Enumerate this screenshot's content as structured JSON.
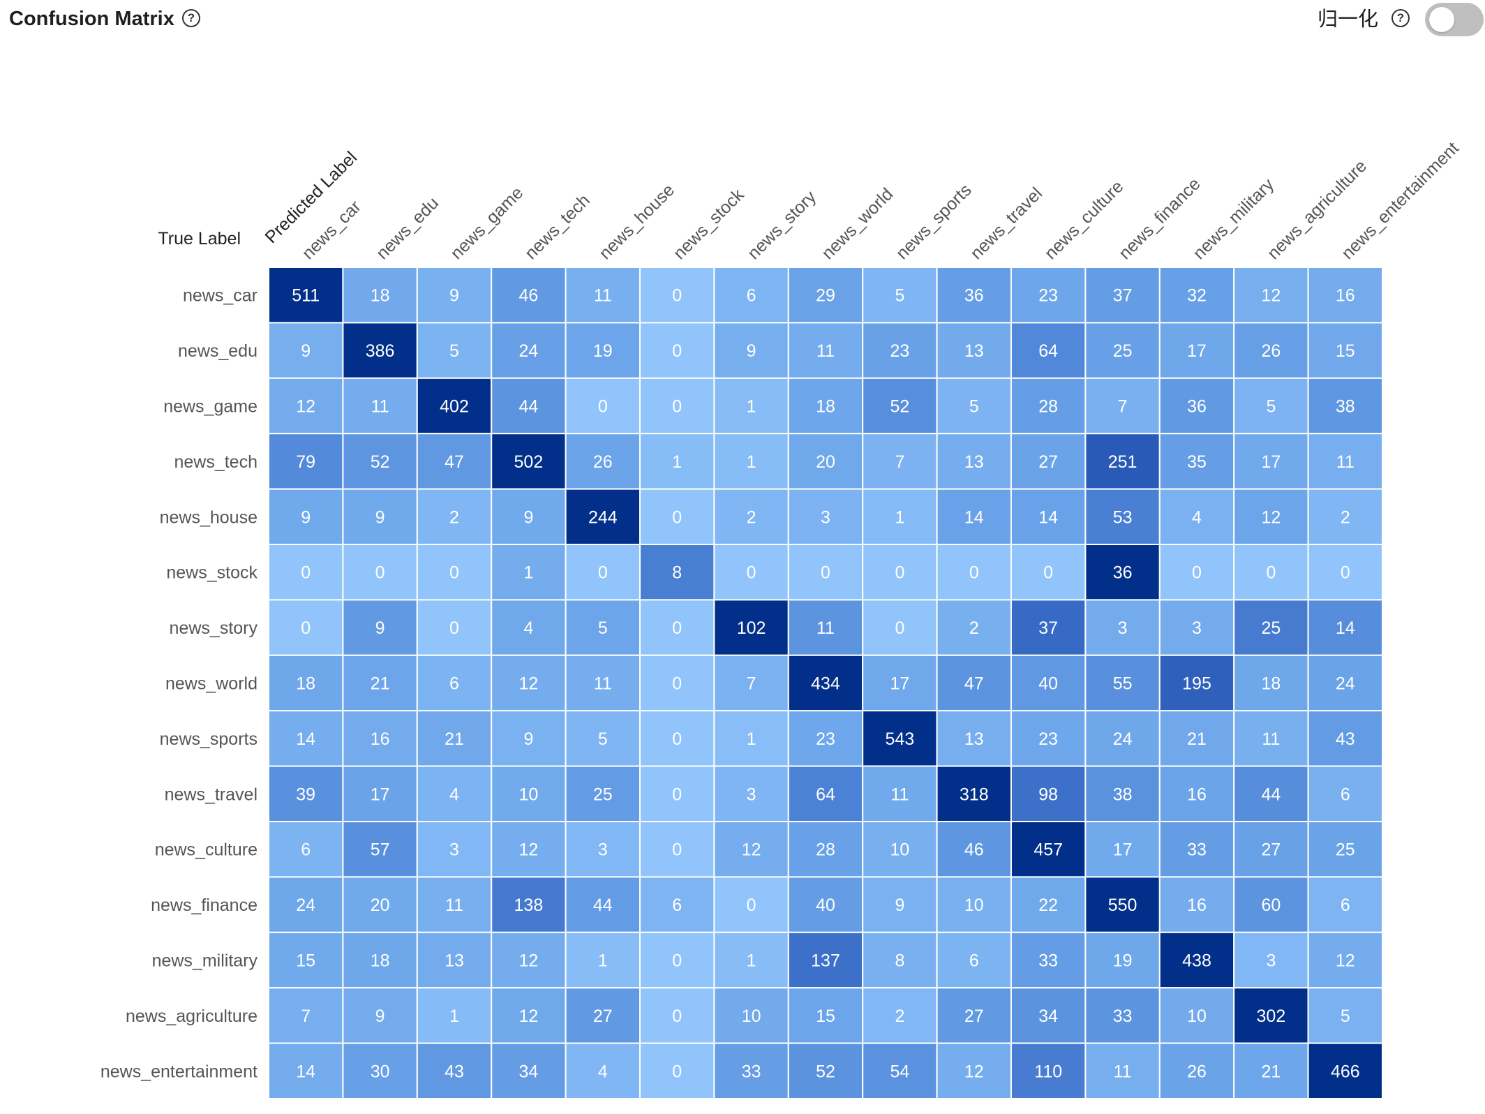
{
  "header": {
    "title": "Confusion Matrix",
    "normalize_label": "归一化",
    "normalize_on": false
  },
  "colors": {
    "scale": [
      "#90c4fb",
      "#6da6ea",
      "#4a80d4",
      "#2657b6",
      "#012f89"
    ],
    "text_dark_cell": "#ffffff",
    "text_light_cell": "#ffffff"
  },
  "chart_data": {
    "type": "heatmap",
    "x_axis_title": "Predicted Label",
    "y_axis_title": "True Label",
    "x_labels": [
      "news_car",
      "news_edu",
      "news_game",
      "news_tech",
      "news_house",
      "news_stock",
      "news_story",
      "news_world",
      "news_sports",
      "news_travel",
      "news_culture",
      "news_finance",
      "news_military",
      "news_agriculture",
      "news_entertainment"
    ],
    "y_labels": [
      "news_car",
      "news_edu",
      "news_game",
      "news_tech",
      "news_house",
      "news_stock",
      "news_story",
      "news_world",
      "news_sports",
      "news_travel",
      "news_culture",
      "news_finance",
      "news_military",
      "news_agriculture",
      "news_entertainment"
    ],
    "values": [
      [
        511,
        18,
        9,
        46,
        11,
        0,
        6,
        29,
        5,
        36,
        23,
        37,
        32,
        12,
        16
      ],
      [
        9,
        386,
        5,
        24,
        19,
        0,
        9,
        11,
        23,
        13,
        64,
        25,
        17,
        26,
        15
      ],
      [
        12,
        11,
        402,
        44,
        0,
        0,
        1,
        18,
        52,
        5,
        28,
        7,
        36,
        5,
        38
      ],
      [
        79,
        52,
        47,
        502,
        26,
        1,
        1,
        20,
        7,
        13,
        27,
        251,
        35,
        17,
        11
      ],
      [
        9,
        9,
        2,
        9,
        244,
        0,
        2,
        3,
        1,
        14,
        14,
        53,
        4,
        12,
        2
      ],
      [
        0,
        0,
        0,
        1,
        0,
        8,
        0,
        0,
        0,
        0,
        0,
        36,
        0,
        0,
        0
      ],
      [
        0,
        9,
        0,
        4,
        5,
        0,
        102,
        11,
        0,
        2,
        37,
        3,
        3,
        25,
        14
      ],
      [
        18,
        21,
        6,
        12,
        11,
        0,
        7,
        434,
        17,
        47,
        40,
        55,
        195,
        18,
        24
      ],
      [
        14,
        16,
        21,
        9,
        5,
        0,
        1,
        23,
        543,
        13,
        23,
        24,
        21,
        11,
        43
      ],
      [
        39,
        17,
        4,
        10,
        25,
        0,
        3,
        64,
        11,
        318,
        98,
        38,
        16,
        44,
        6
      ],
      [
        6,
        57,
        3,
        12,
        3,
        0,
        12,
        28,
        10,
        46,
        457,
        17,
        33,
        27,
        25
      ],
      [
        24,
        20,
        11,
        138,
        44,
        6,
        0,
        40,
        9,
        10,
        22,
        550,
        16,
        60,
        6
      ],
      [
        15,
        18,
        13,
        12,
        1,
        0,
        1,
        137,
        8,
        6,
        33,
        19,
        438,
        3,
        12
      ],
      [
        7,
        9,
        1,
        12,
        27,
        0,
        10,
        15,
        2,
        27,
        34,
        33,
        10,
        302,
        5
      ],
      [
        14,
        30,
        43,
        34,
        4,
        0,
        33,
        52,
        54,
        12,
        110,
        11,
        26,
        21,
        466
      ]
    ]
  }
}
